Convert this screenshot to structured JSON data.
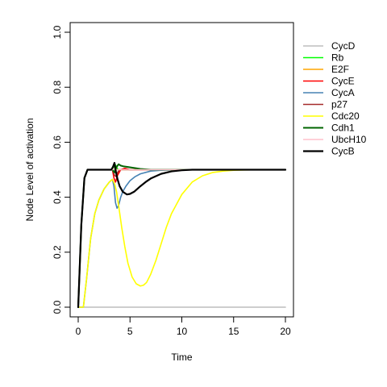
{
  "chart_data": {
    "type": "line",
    "title": "",
    "xlabel": "Time",
    "ylabel": "Node Level of activation",
    "xlim": [
      0,
      20
    ],
    "ylim": [
      0,
      1
    ],
    "xticks": [
      0,
      5,
      10,
      15,
      20
    ],
    "yticks": [
      0.0,
      0.2,
      0.4,
      0.6,
      0.8,
      1.0
    ],
    "xtick_labels": [
      "0",
      "5",
      "10",
      "15",
      "20"
    ],
    "ytick_labels": [
      "0.0",
      "0.2",
      "0.4",
      "0.6",
      "0.8",
      "1.0"
    ],
    "grid": false,
    "legend_position": "right",
    "series": [
      {
        "name": "CycD",
        "color": "#bebebe",
        "width": 1.6,
        "x": [
          0,
          20
        ],
        "y": [
          0,
          0
        ]
      },
      {
        "name": "Rb",
        "color": "#00ff00",
        "width": 1.6,
        "x": [
          0,
          0.3,
          0.6,
          0.9,
          1.3,
          1.8,
          2.3,
          2.8,
          3.2,
          3.4,
          3.55,
          3.7,
          3.85,
          4.0,
          4.2,
          4.5,
          5.0,
          6.0,
          7.0,
          9.0,
          12.0,
          20.0
        ],
        "y": [
          0,
          0.3,
          0.47,
          0.5,
          0.5,
          0.5,
          0.5,
          0.5,
          0.5,
          0.5,
          0.52,
          0.51,
          0.5,
          0.5,
          0.5,
          0.5,
          0.5,
          0.5,
          0.5,
          0.5,
          0.5,
          0.5
        ]
      },
      {
        "name": "E2F",
        "color": "#ffa500",
        "width": 1.6,
        "x": [
          0,
          0.3,
          0.6,
          0.9,
          1.3,
          3.3,
          3.5,
          3.7,
          4.0,
          4.5,
          5.5,
          7.0,
          20.0
        ],
        "y": [
          0,
          0.3,
          0.47,
          0.5,
          0.5,
          0.5,
          0.49,
          0.5,
          0.5,
          0.5,
          0.5,
          0.5,
          0.5
        ]
      },
      {
        "name": "CycE",
        "color": "#ff0000",
        "width": 1.6,
        "x": [
          0,
          0.3,
          0.6,
          0.9,
          1.3,
          3.3,
          3.45,
          3.6,
          3.8,
          4.1,
          4.5,
          5.0,
          6.0,
          20.0
        ],
        "y": [
          0,
          0.3,
          0.47,
          0.5,
          0.5,
          0.5,
          0.47,
          0.455,
          0.48,
          0.5,
          0.505,
          0.5,
          0.5,
          0.5
        ]
      },
      {
        "name": "CycA",
        "color": "#4682b4",
        "width": 1.6,
        "x": [
          0,
          0.5,
          0.8,
          1.2,
          1.6,
          2.0,
          2.5,
          3.0,
          3.3,
          3.45,
          3.6,
          3.75,
          3.9,
          4.1,
          4.3,
          4.6,
          5.0,
          5.5,
          6.0,
          7.0,
          8.0,
          10.0,
          13.0,
          20.0
        ],
        "y": [
          0,
          0,
          0.1,
          0.25,
          0.34,
          0.39,
          0.43,
          0.455,
          0.465,
          0.44,
          0.38,
          0.36,
          0.37,
          0.4,
          0.42,
          0.44,
          0.46,
          0.475,
          0.485,
          0.495,
          0.498,
          0.5,
          0.5,
          0.5
        ]
      },
      {
        "name": "p27",
        "color": "#a52a2a",
        "width": 1.6,
        "x": [
          0,
          0.3,
          0.6,
          0.9,
          1.3,
          3.3,
          3.5,
          3.65,
          3.8,
          4.0,
          4.3,
          5.0,
          20.0
        ],
        "y": [
          0,
          0.3,
          0.47,
          0.5,
          0.5,
          0.5,
          0.48,
          0.475,
          0.49,
          0.5,
          0.5,
          0.5,
          0.5
        ]
      },
      {
        "name": "Cdc20",
        "color": "#ffff00",
        "width": 1.6,
        "x": [
          0,
          0.5,
          0.8,
          1.2,
          1.6,
          2.0,
          2.5,
          3.0,
          3.3,
          3.5,
          3.7,
          3.9,
          4.2,
          4.5,
          4.8,
          5.2,
          5.6,
          6.0,
          6.3,
          6.6,
          7.0,
          7.5,
          8.0,
          8.5,
          9.0,
          10.0,
          11.0,
          12.0,
          13.0,
          14.0,
          15.0,
          16.0,
          18.0,
          20.0
        ],
        "y": [
          0,
          0,
          0.1,
          0.25,
          0.34,
          0.39,
          0.43,
          0.455,
          0.465,
          0.45,
          0.42,
          0.37,
          0.29,
          0.22,
          0.16,
          0.11,
          0.085,
          0.077,
          0.08,
          0.09,
          0.12,
          0.17,
          0.23,
          0.29,
          0.34,
          0.41,
          0.455,
          0.478,
          0.49,
          0.495,
          0.498,
          0.499,
          0.5,
          0.5
        ]
      },
      {
        "name": "Cdh1",
        "color": "#006400",
        "width": 2.0,
        "x": [
          0,
          0.3,
          0.6,
          0.9,
          1.3,
          3.3,
          3.5,
          3.7,
          3.9,
          4.1,
          4.4,
          4.8,
          5.3,
          6.0,
          7.0,
          20.0
        ],
        "y": [
          0,
          0.3,
          0.47,
          0.5,
          0.5,
          0.5,
          0.49,
          0.51,
          0.52,
          0.515,
          0.512,
          0.51,
          0.507,
          0.503,
          0.5,
          0.5
        ]
      },
      {
        "name": "UbcH10",
        "color": "#ffc0cb",
        "width": 1.6,
        "x": [
          0,
          0.3,
          0.6,
          0.9,
          1.3,
          3.3,
          3.5,
          3.7,
          4.0,
          4.5,
          20.0
        ],
        "y": [
          0,
          0.3,
          0.47,
          0.5,
          0.5,
          0.5,
          0.505,
          0.5,
          0.5,
          0.5,
          0.5
        ]
      },
      {
        "name": "CycB",
        "color": "#000000",
        "width": 2.2,
        "x": [
          0,
          0.3,
          0.6,
          0.9,
          1.3,
          1.8,
          2.3,
          2.8,
          3.2,
          3.35,
          3.5,
          3.65,
          3.8,
          4.0,
          4.3,
          4.7,
          5.0,
          5.4,
          6.0,
          6.5,
          7.0,
          8.0,
          9.0,
          10.0,
          11.0,
          13.0,
          20.0
        ],
        "y": [
          0,
          0.3,
          0.47,
          0.5,
          0.5,
          0.5,
          0.5,
          0.5,
          0.5,
          0.51,
          0.525,
          0.49,
          0.465,
          0.44,
          0.42,
          0.41,
          0.412,
          0.42,
          0.44,
          0.455,
          0.468,
          0.485,
          0.494,
          0.498,
          0.5,
          0.5,
          0.5
        ]
      }
    ]
  }
}
